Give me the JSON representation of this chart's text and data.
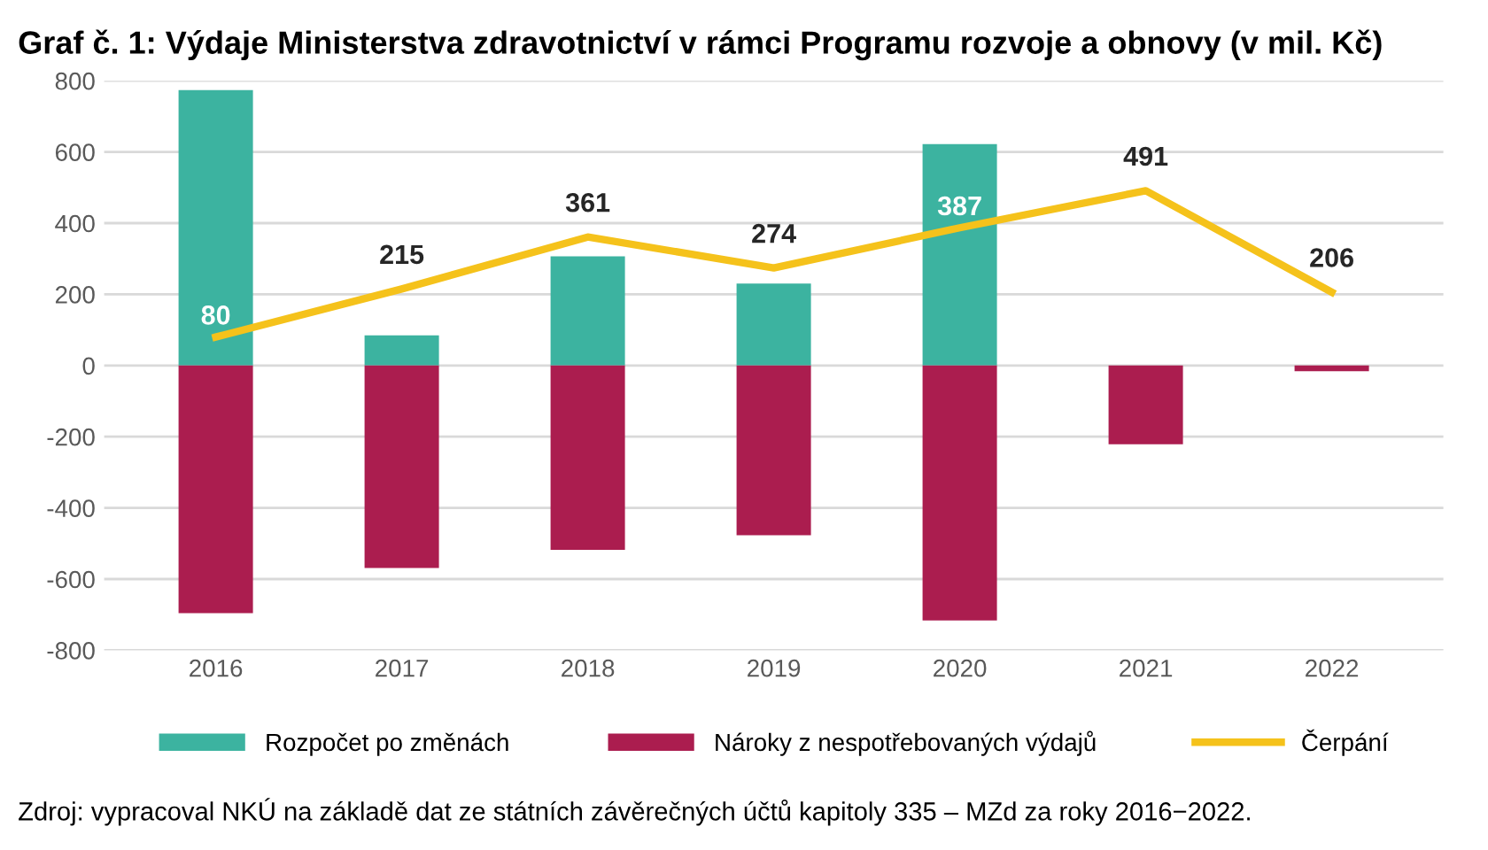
{
  "chart_data": {
    "type": "bar",
    "stacked": true,
    "title": "Graf č. 1: Výdaje Ministerstva zdravotnictví v rámci Programu rozvoje a obnovy (v mil. Kč)",
    "categories": [
      "2016",
      "2017",
      "2018",
      "2019",
      "2020",
      "2021",
      "2022"
    ],
    "series": [
      {
        "name": "Rozpočet po změnách",
        "color": "#3cb3a0",
        "values": [
          774,
          85,
          307,
          230,
          622,
          null,
          null
        ]
      },
      {
        "name": "Nároky z nespotřebovaných výdajů",
        "color": "#ab1d4f",
        "values": [
          -696,
          -569,
          -518,
          -477,
          -716,
          -221,
          -16
        ]
      },
      {
        "name": "Čerpání",
        "type": "line",
        "color": "#f5c21b",
        "values": [
          80,
          215,
          361,
          274,
          387,
          491,
          206
        ],
        "value_labels": [
          "80",
          "215",
          "361",
          "274",
          "387",
          "491",
          "206"
        ]
      }
    ],
    "ylim": [
      -800,
      800
    ],
    "yticks": [
      -800,
      -600,
      -400,
      -200,
      0,
      200,
      400,
      600,
      800
    ],
    "grid": "y",
    "legend": "bottom",
    "annotations": [
      "Zdroj: vypracoval NKÚ na základě dat ze státních závěrečných účtů kapitoly 335 – MZd za roky 2016−2022."
    ]
  }
}
